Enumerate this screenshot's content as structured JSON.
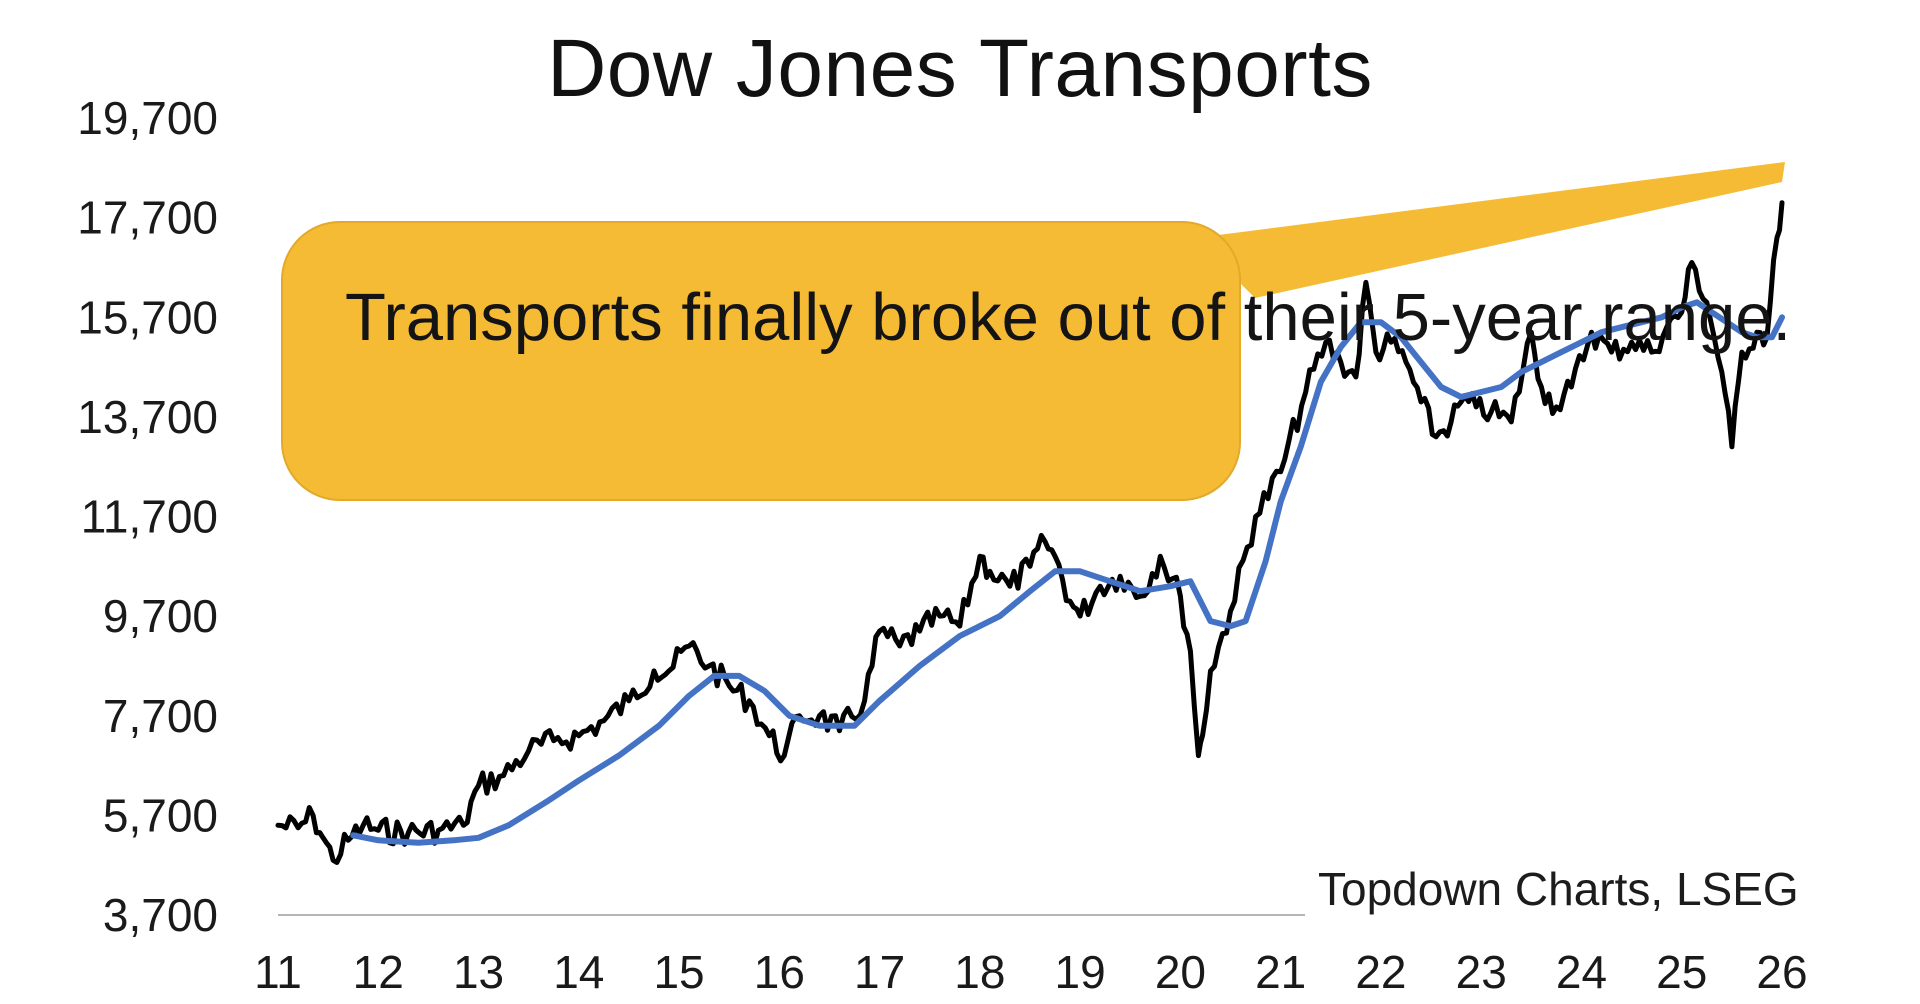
{
  "chart_data": {
    "type": "line",
    "title": "Dow Jones Transports",
    "annotation": "Transports finally broke out of their 5-year range.",
    "source": "Topdown Charts, LSEG",
    "xlabel": "",
    "ylabel": "",
    "y_ticks": [
      "3,700",
      "5,700",
      "7,700",
      "9,700",
      "11,700",
      "13,700",
      "15,700",
      "17,700",
      "19,700"
    ],
    "ylim": [
      3700,
      19700
    ],
    "x_ticks": [
      "11",
      "12",
      "13",
      "14",
      "15",
      "16",
      "17",
      "18",
      "19",
      "20",
      "21",
      "22",
      "23",
      "24",
      "25",
      "26"
    ],
    "xlim": [
      2011,
      2026
    ],
    "grid": false,
    "colors": {
      "index": "#000000",
      "trend": "#4472c4",
      "callout": "#f5bb35"
    },
    "series": [
      {
        "x": [
          2011.0,
          2011.2,
          2011.35,
          2011.45,
          2011.55,
          2011.7,
          2011.85,
          2012.0,
          2012.3,
          2012.6,
          2012.85,
          2013.0,
          2013.25,
          2013.5,
          2013.75,
          2014.0,
          2014.25,
          2014.5,
          2014.75,
          2014.9,
          2015.1,
          2015.3,
          2015.5,
          2015.7,
          2015.9,
          2016.05,
          2016.2,
          2016.4,
          2016.6,
          2016.85,
          2017.0,
          2017.2,
          2017.4,
          2017.6,
          2017.8,
          2018.0,
          2018.1,
          2018.3,
          2018.5,
          2018.65,
          2018.75,
          2018.9,
          2019.0,
          2019.2,
          2019.4,
          2019.6,
          2019.8,
          2020.0,
          2020.1,
          2020.18,
          2020.22,
          2020.3,
          2020.5,
          2020.75,
          2021.0,
          2021.25,
          2021.45,
          2021.6,
          2021.75,
          2021.85,
          2021.95,
          2022.1,
          2022.25,
          2022.4,
          2022.55,
          2022.7,
          2022.8,
          2022.95,
          2023.1,
          2023.3,
          2023.5,
          2023.6,
          2023.75,
          2023.9,
          2024.1,
          2024.3,
          2024.5,
          2024.7,
          2024.85,
          2025.0,
          2025.1,
          2025.25,
          2025.4,
          2025.5,
          2025.6,
          2025.75,
          2025.85,
          2025.95,
          2026.0
        ],
        "y": [
          5500,
          5450,
          5700,
          5250,
          4800,
          5200,
          5500,
          5400,
          5350,
          5400,
          5500,
          6300,
          6500,
          7000,
          7200,
          7300,
          7600,
          8000,
          8600,
          8600,
          9100,
          8700,
          8300,
          8000,
          7300,
          6900,
          7700,
          7700,
          7400,
          8000,
          9400,
          9100,
          9400,
          9700,
          9500,
          10900,
          10600,
          10300,
          10700,
          11200,
          10900,
          10000,
          9700,
          10300,
          10500,
          10100,
          10900,
          10100,
          9000,
          6900,
          7300,
          8600,
          9800,
          11700,
          12600,
          14200,
          15200,
          14800,
          14500,
          16400,
          15000,
          15200,
          14800,
          14000,
          13300,
          13600,
          14000,
          13900,
          13800,
          13600,
          15400,
          14300,
          13900,
          14300,
          15400,
          15000,
          15200,
          15000,
          15500,
          15800,
          16800,
          16000,
          14600,
          13100,
          15000,
          15400,
          15300,
          17300,
          18000
        ]
      },
      {
        "x": [
          2011.75,
          2012.0,
          2012.4,
          2012.75,
          2013.0,
          2013.3,
          2013.7,
          2014.0,
          2014.4,
          2014.8,
          2015.1,
          2015.35,
          2015.6,
          2015.85,
          2016.1,
          2016.4,
          2016.75,
          2017.0,
          2017.4,
          2017.8,
          2018.2,
          2018.5,
          2018.75,
          2019.0,
          2019.3,
          2019.6,
          2019.9,
          2020.1,
          2020.3,
          2020.5,
          2020.65,
          2020.85,
          2021.0,
          2021.2,
          2021.4,
          2021.6,
          2021.8,
          2022.0,
          2022.2,
          2022.4,
          2022.6,
          2022.8,
          2023.0,
          2023.2,
          2023.4,
          2023.6,
          2023.8,
          2024.0,
          2024.2,
          2024.4,
          2024.6,
          2024.8,
          2025.0,
          2025.15,
          2025.3,
          2025.45,
          2025.6,
          2025.75,
          2025.9,
          2026.0
        ],
        "y": [
          5300,
          5200,
          5150,
          5200,
          5250,
          5500,
          6000,
          6400,
          6900,
          7500,
          8100,
          8500,
          8500,
          8200,
          7700,
          7500,
          7500,
          8000,
          8700,
          9300,
          9700,
          10200,
          10600,
          10600,
          10400,
          10200,
          10300,
          10400,
          9600,
          9500,
          9600,
          10800,
          12000,
          13100,
          14400,
          15100,
          15600,
          15600,
          15300,
          14800,
          14300,
          14100,
          14200,
          14300,
          14600,
          14800,
          15000,
          15200,
          15400,
          15500,
          15600,
          15700,
          15900,
          16000,
          15800,
          15600,
          15400,
          15300,
          15300,
          15700
        ]
      }
    ]
  }
}
